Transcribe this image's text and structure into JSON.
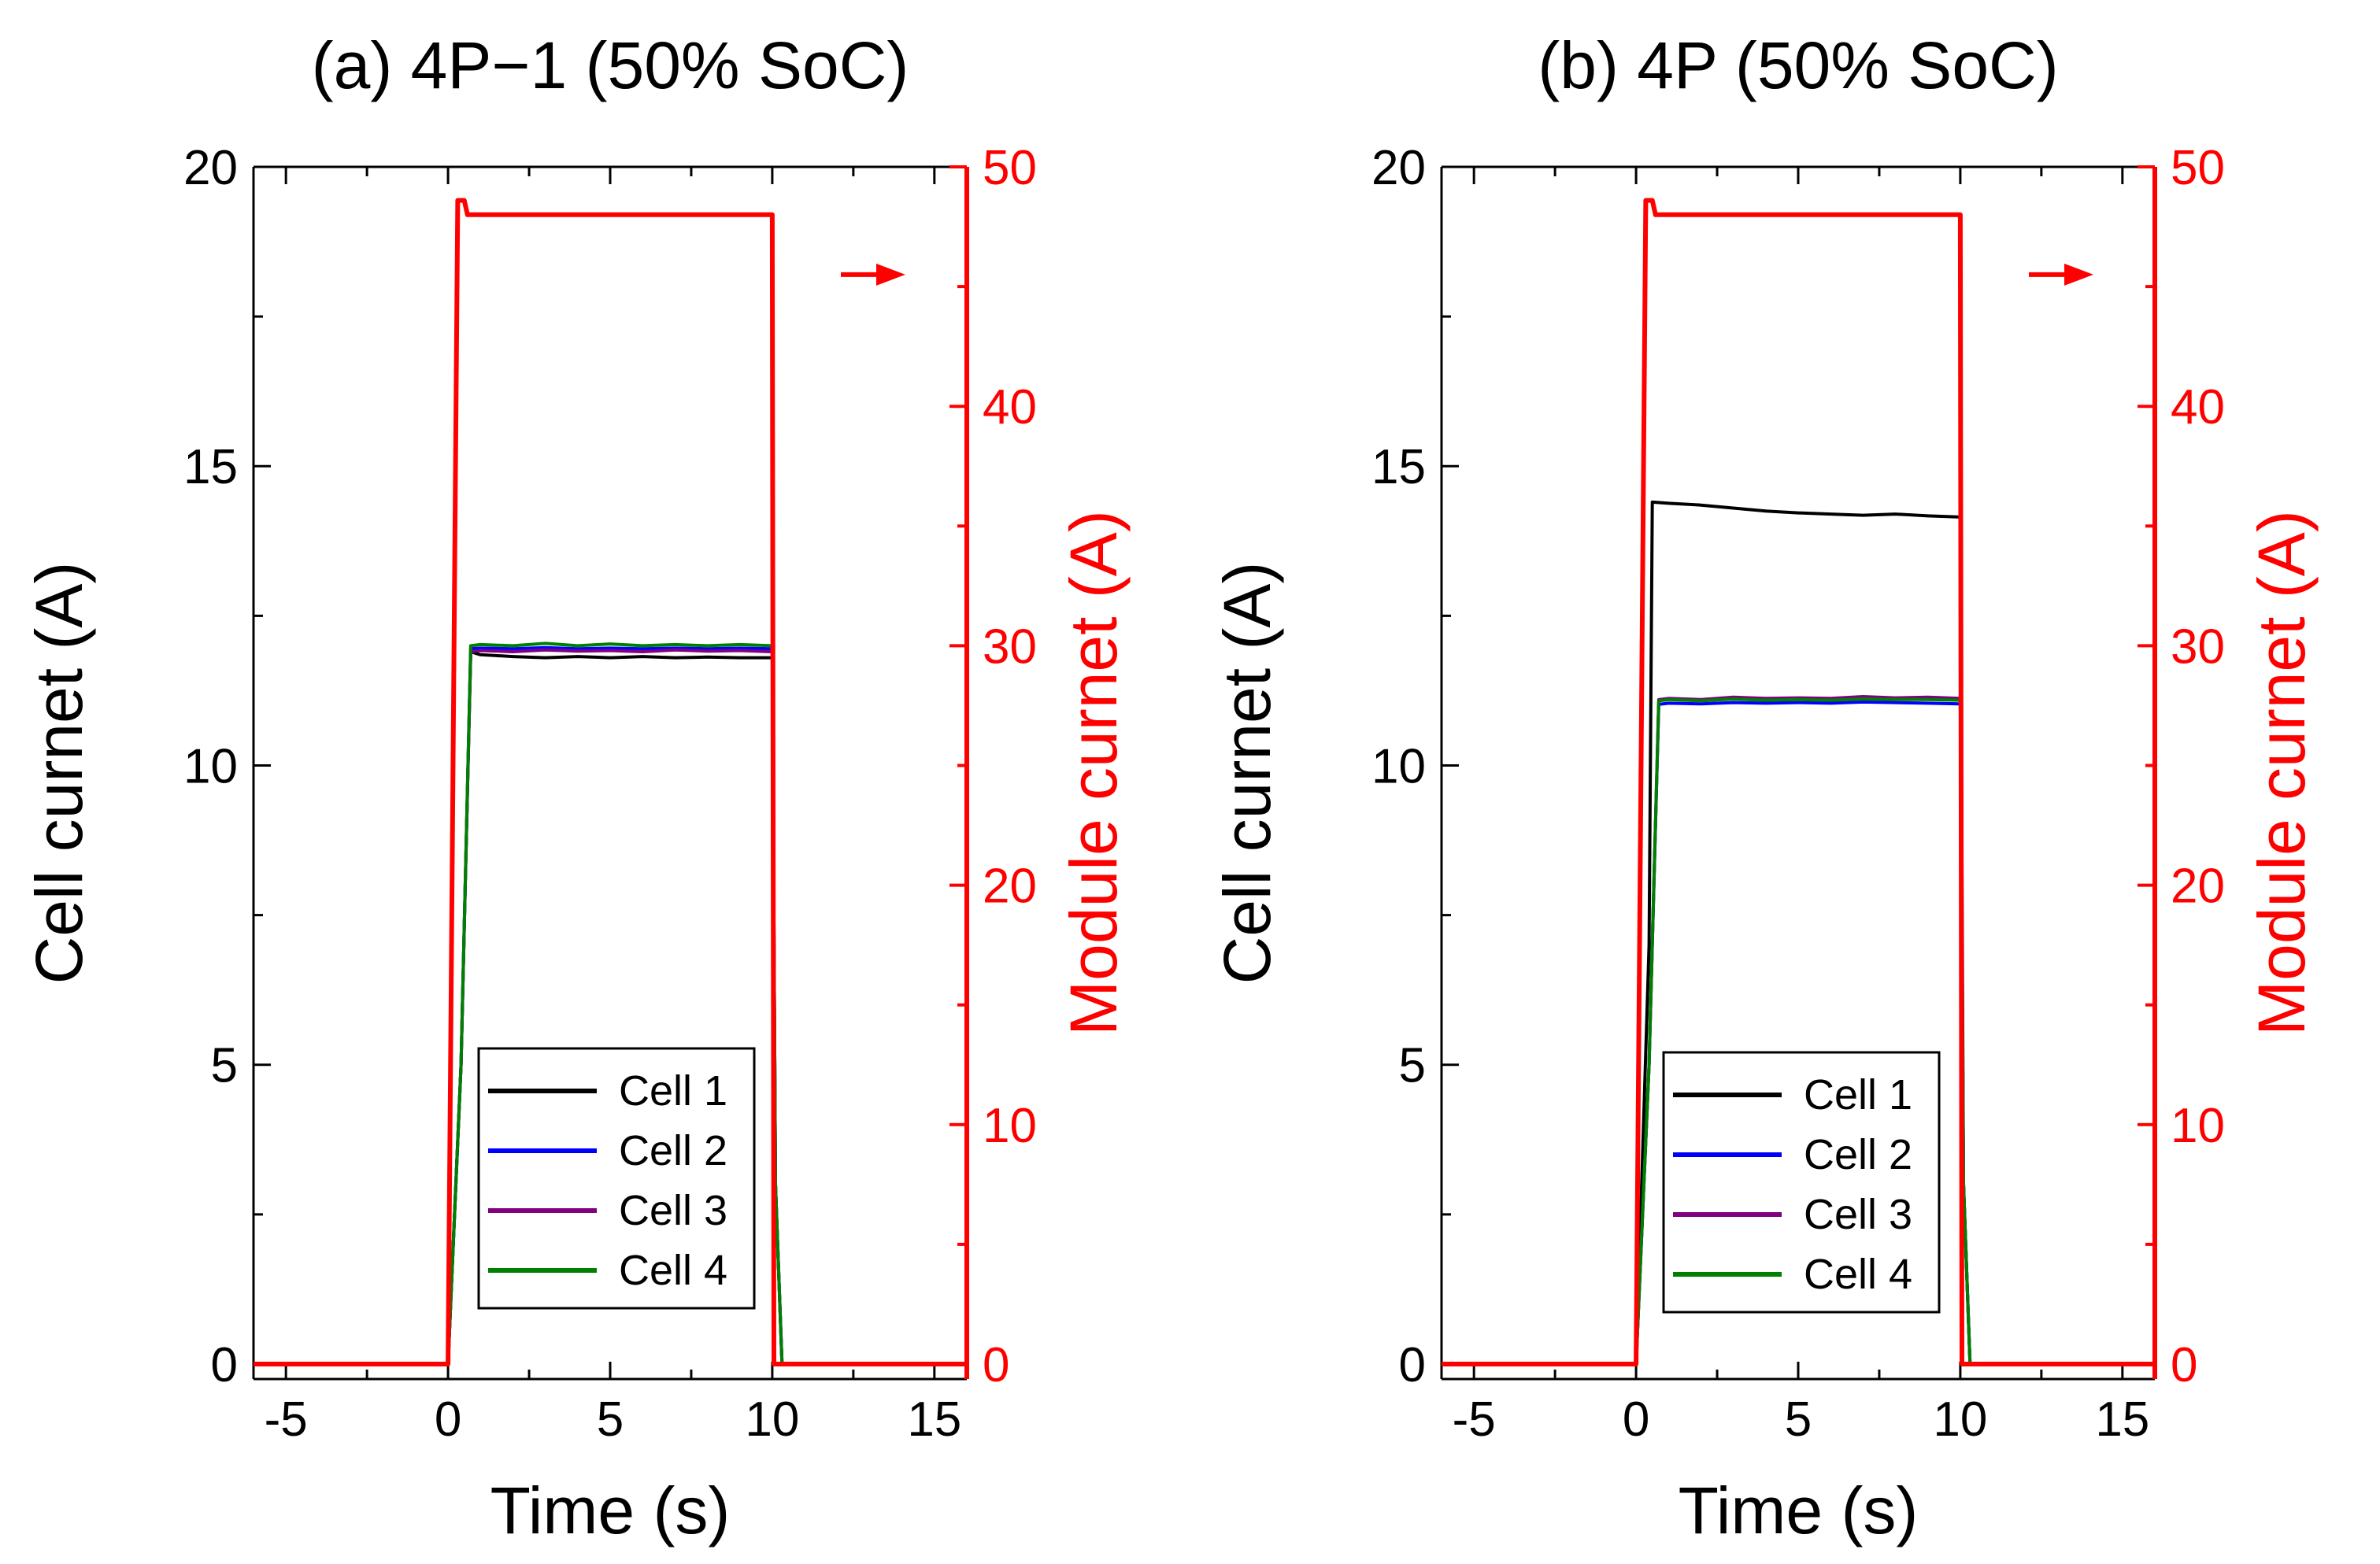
{
  "colors": {
    "axis": "#000000",
    "module": "#ff0000",
    "cell1": "#000000",
    "cell2": "#0000ff",
    "cell3": "#800080",
    "cell4": "#008000"
  },
  "chart_data": [
    {
      "type": "line",
      "title": "(a) 4P−1 (50% SoC)",
      "xlabel": "Time (s)",
      "ylabel": "Cell curnet (A)",
      "ylabel_right": "Module curnet (A)",
      "xlim": [
        -6,
        16
      ],
      "ylim": [
        -0.25,
        20
      ],
      "ylim_right": [
        -0.625,
        50
      ],
      "xticks": [
        -5,
        0,
        5,
        10,
        15
      ],
      "yticks": [
        0,
        5,
        10,
        15,
        20
      ],
      "yticks_right": [
        0,
        10,
        20,
        30,
        40,
        50
      ],
      "arrow": "right-axis indicator",
      "legend": {
        "position": "bottom-right",
        "entries": [
          "Cell 1",
          "Cell 2",
          "Cell 3",
          "Cell 4"
        ]
      },
      "series": [
        {
          "name": "Cell 1",
          "axis": "left",
          "x": [
            -6,
            0,
            0.4,
            0.7,
            1,
            2,
            3,
            4,
            5,
            6,
            7,
            8,
            9,
            10,
            10.1,
            10.3,
            16
          ],
          "y": [
            0,
            0,
            5.0,
            11.9,
            11.85,
            11.82,
            11.8,
            11.82,
            11.8,
            11.82,
            11.8,
            11.81,
            11.8,
            11.8,
            3.0,
            0,
            0
          ]
        },
        {
          "name": "Cell 2",
          "axis": "left",
          "x": [
            -6,
            0,
            0.4,
            0.7,
            1,
            2,
            3,
            4,
            5,
            6,
            7,
            8,
            9,
            10,
            10.1,
            10.3,
            16
          ],
          "y": [
            0,
            0,
            5.0,
            11.95,
            11.96,
            11.95,
            11.97,
            11.95,
            11.96,
            11.95,
            11.96,
            11.95,
            11.96,
            11.95,
            3.0,
            0,
            0
          ]
        },
        {
          "name": "Cell 3",
          "axis": "left",
          "x": [
            -6,
            0,
            0.4,
            0.7,
            1,
            2,
            3,
            4,
            5,
            6,
            7,
            8,
            9,
            10,
            10.1,
            10.3,
            16
          ],
          "y": [
            0,
            0,
            5.0,
            11.9,
            11.92,
            11.9,
            11.93,
            11.91,
            11.92,
            11.9,
            11.93,
            11.91,
            11.92,
            11.9,
            3.0,
            0,
            0
          ]
        },
        {
          "name": "Cell 4",
          "axis": "left",
          "x": [
            -6,
            0,
            0.4,
            0.7,
            1,
            2,
            3,
            4,
            5,
            6,
            7,
            8,
            9,
            10,
            10.1,
            10.3,
            16
          ],
          "y": [
            0,
            0,
            5.0,
            12.0,
            12.02,
            12.0,
            12.04,
            12.0,
            12.03,
            12.0,
            12.02,
            12.0,
            12.02,
            12.0,
            3.0,
            0,
            0
          ]
        },
        {
          "name": "Module",
          "axis": "right",
          "x": [
            -6,
            0,
            0.3,
            0.5,
            0.6,
            10,
            10.05,
            16
          ],
          "y": [
            0,
            0,
            48.6,
            48.6,
            48.0,
            48.0,
            0,
            0
          ]
        }
      ]
    },
    {
      "type": "line",
      "title": "(b) 4P (50% SoC)",
      "xlabel": "Time (s)",
      "ylabel": "Cell curnet (A)",
      "ylabel_right": "Module curnet (A)",
      "xlim": [
        -6,
        16
      ],
      "ylim": [
        -0.25,
        20
      ],
      "ylim_right": [
        -0.625,
        50
      ],
      "xticks": [
        -5,
        0,
        5,
        10,
        15
      ],
      "yticks": [
        0,
        5,
        10,
        15,
        20
      ],
      "yticks_right": [
        0,
        10,
        20,
        30,
        40,
        50
      ],
      "arrow": "right-axis indicator",
      "legend": {
        "position": "bottom-right",
        "entries": [
          "Cell 1",
          "Cell 2",
          "Cell 3",
          "Cell 4"
        ]
      },
      "series": [
        {
          "name": "Cell 1",
          "axis": "left",
          "x": [
            -6,
            0,
            0.4,
            0.5,
            1,
            2,
            3,
            4,
            5,
            6,
            7,
            8,
            9,
            10,
            10.1,
            10.3,
            16
          ],
          "y": [
            0,
            0,
            7.0,
            14.4,
            14.38,
            14.35,
            14.3,
            14.25,
            14.22,
            14.2,
            14.18,
            14.2,
            14.17,
            14.15,
            3.0,
            0,
            0
          ]
        },
        {
          "name": "Cell 2",
          "axis": "left",
          "x": [
            -6,
            0,
            0.4,
            0.7,
            1,
            2,
            3,
            4,
            5,
            6,
            7,
            8,
            9,
            10,
            10.1,
            10.3,
            16
          ],
          "y": [
            0,
            0,
            5.0,
            11.02,
            11.04,
            11.03,
            11.05,
            11.04,
            11.05,
            11.04,
            11.06,
            11.05,
            11.04,
            11.03,
            3.0,
            0,
            0
          ]
        },
        {
          "name": "Cell 3",
          "axis": "left",
          "x": [
            -6,
            0,
            0.4,
            0.7,
            1,
            2,
            3,
            4,
            5,
            6,
            7,
            8,
            9,
            10,
            10.1,
            10.3,
            16
          ],
          "y": [
            0,
            0,
            5.0,
            11.1,
            11.12,
            11.1,
            11.14,
            11.12,
            11.13,
            11.12,
            11.15,
            11.13,
            11.14,
            11.12,
            3.0,
            0,
            0
          ]
        },
        {
          "name": "Cell 4",
          "axis": "left",
          "x": [
            -6,
            0,
            0.4,
            0.7,
            1,
            2,
            3,
            4,
            5,
            6,
            7,
            8,
            9,
            10,
            10.1,
            10.3,
            16
          ],
          "y": [
            0,
            0,
            5.0,
            11.08,
            11.1,
            11.08,
            11.11,
            11.09,
            11.1,
            11.09,
            11.11,
            11.1,
            11.1,
            11.09,
            3.0,
            0,
            0
          ]
        },
        {
          "name": "Module",
          "axis": "right",
          "x": [
            -6,
            0,
            0.3,
            0.5,
            0.6,
            10,
            10.05,
            16
          ],
          "y": [
            0,
            0,
            48.6,
            48.6,
            48.0,
            48.0,
            0,
            0
          ]
        }
      ]
    }
  ]
}
